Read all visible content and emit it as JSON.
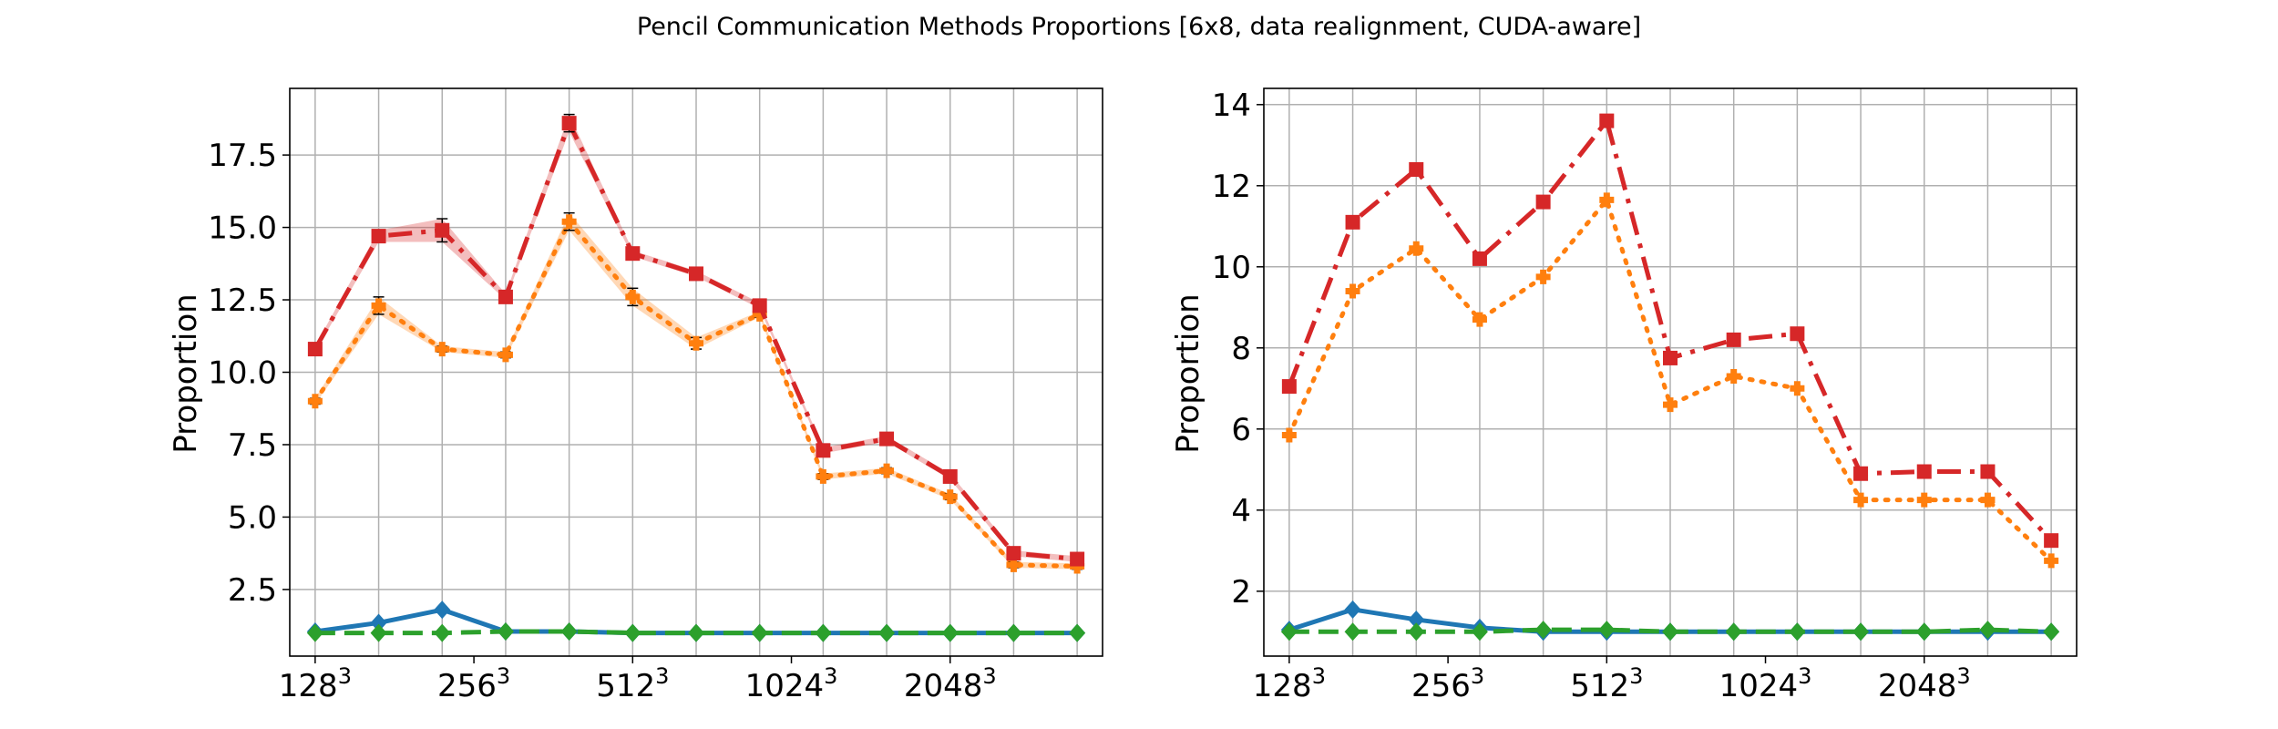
{
  "figure": {
    "suptitle": "Pencil Communication Methods Proportions [6x8, data realignment, CUDA-aware]"
  },
  "chart_data": [
    {
      "type": "line",
      "title": "",
      "xlabel": "",
      "ylabel": "Proportion",
      "xlim": [
        0,
        12
      ],
      "ylim": [
        0.2,
        19.8
      ],
      "grid": true,
      "x_index": [
        0,
        1,
        2,
        3,
        4,
        5,
        6,
        7,
        8,
        9,
        10,
        11,
        12
      ],
      "xticks": [
        {
          "pos": 0,
          "base": "128",
          "exp": "3"
        },
        {
          "pos": 2.5,
          "base": "256",
          "exp": "3"
        },
        {
          "pos": 5,
          "base": "512",
          "exp": "3"
        },
        {
          "pos": 7.5,
          "base": "1024",
          "exp": "3"
        },
        {
          "pos": 10,
          "base": "2048",
          "exp": "3"
        }
      ],
      "yticks": [
        "2.5",
        "5.0",
        "7.5",
        "10.0",
        "12.5",
        "15.0",
        "17.5"
      ],
      "series": [
        {
          "color": "#1f77b4",
          "linestyle": "solid",
          "marker": "diamond",
          "values": [
            1.05,
            1.35,
            1.8,
            1.05,
            1.05,
            1.0,
            1.0,
            1.0,
            1.0,
            1.0,
            1.0,
            1.0,
            1.0
          ]
        },
        {
          "color": "#ff7f0e",
          "linestyle": "dotted",
          "marker": "cross",
          "values": [
            9.0,
            12.3,
            10.8,
            10.6,
            15.2,
            12.6,
            11.0,
            12.0,
            6.4,
            6.6,
            5.7,
            3.35,
            3.3
          ],
          "error": [
            0.1,
            0.3,
            0.1,
            0.1,
            0.3,
            0.3,
            0.2,
            0.1,
            0.1,
            0.1,
            0.1,
            0.1,
            0.1
          ]
        },
        {
          "color": "#2ca02c",
          "linestyle": "dashed",
          "marker": "diamond",
          "values": [
            1.0,
            1.0,
            1.0,
            1.05,
            1.05,
            1.0,
            1.0,
            1.0,
            1.0,
            1.0,
            1.0,
            1.0,
            1.0
          ]
        },
        {
          "color": "#d62728",
          "linestyle": "dashdot",
          "marker": "square",
          "values": [
            10.8,
            14.7,
            14.9,
            12.6,
            18.6,
            14.1,
            13.4,
            12.3,
            7.3,
            7.7,
            6.4,
            3.75,
            3.55
          ],
          "error": [
            0.1,
            0.2,
            0.4,
            0.1,
            0.3,
            0.1,
            0.1,
            0.1,
            0.1,
            0.1,
            0.1,
            0.1,
            0.1
          ]
        }
      ]
    },
    {
      "type": "line",
      "title": "",
      "xlabel": "",
      "ylabel": "Proportion",
      "xlim": [
        0,
        12
      ],
      "ylim": [
        0.4,
        14.4
      ],
      "grid": true,
      "x_index": [
        0,
        1,
        2,
        3,
        4,
        5,
        6,
        7,
        8,
        9,
        10,
        11,
        12
      ],
      "xticks": [
        {
          "pos": 0,
          "base": "128",
          "exp": "3"
        },
        {
          "pos": 2.5,
          "base": "256",
          "exp": "3"
        },
        {
          "pos": 5,
          "base": "512",
          "exp": "3"
        },
        {
          "pos": 7.5,
          "base": "1024",
          "exp": "3"
        },
        {
          "pos": 10,
          "base": "2048",
          "exp": "3"
        }
      ],
      "yticks": [
        "2",
        "4",
        "6",
        "8",
        "10",
        "12",
        "14"
      ],
      "series": [
        {
          "color": "#1f77b4",
          "linestyle": "solid",
          "marker": "diamond",
          "values": [
            1.05,
            1.55,
            1.3,
            1.1,
            1.0,
            1.0,
            1.0,
            1.0,
            1.0,
            1.0,
            1.0,
            1.0,
            1.0
          ]
        },
        {
          "color": "#ff7f0e",
          "linestyle": "dotted",
          "marker": "cross",
          "values": [
            5.85,
            9.4,
            10.45,
            8.7,
            9.75,
            11.65,
            6.6,
            7.3,
            7.0,
            4.25,
            4.25,
            4.25,
            2.75
          ]
        },
        {
          "color": "#2ca02c",
          "linestyle": "dashed",
          "marker": "diamond",
          "values": [
            1.0,
            1.0,
            1.0,
            1.0,
            1.05,
            1.05,
            1.0,
            1.0,
            1.0,
            1.0,
            1.0,
            1.05,
            1.0
          ]
        },
        {
          "color": "#d62728",
          "linestyle": "dashdot",
          "marker": "square",
          "values": [
            7.05,
            11.1,
            12.4,
            10.2,
            11.6,
            13.6,
            7.75,
            8.2,
            8.35,
            4.9,
            4.95,
            4.95,
            3.25
          ]
        }
      ]
    }
  ]
}
